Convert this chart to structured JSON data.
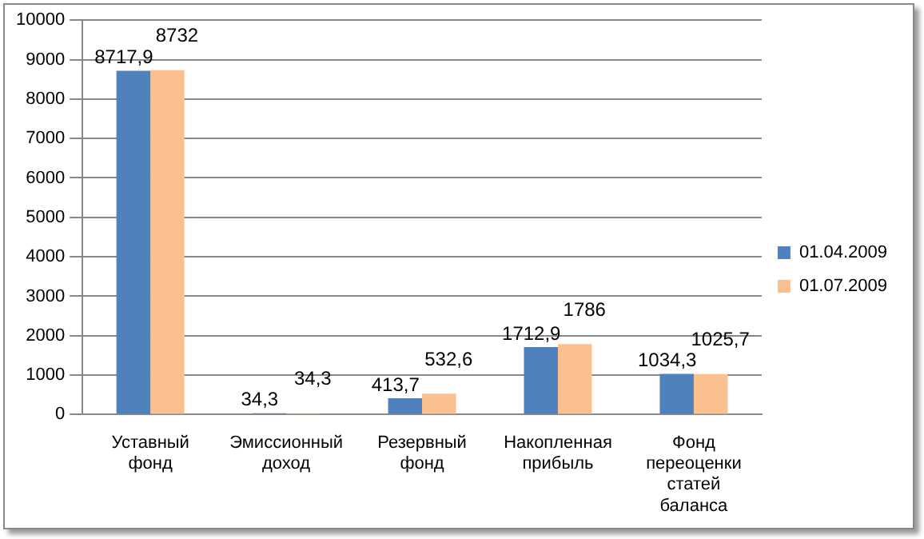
{
  "chart_data": {
    "type": "bar",
    "categories": [
      "Уставный фонд",
      "Эмиссионный доход",
      "Резервный фонд",
      "Накопленная прибыль",
      "Фонд переоценки статей баланса"
    ],
    "series": [
      {
        "name": "01.04.2009",
        "color": "#4f81bd",
        "values": [
          8717.9,
          34.3,
          413.7,
          1712.9,
          1034.3
        ],
        "value_labels": [
          "8717,9",
          "34,3",
          "413,7",
          "1712,9",
          "1034,3"
        ]
      },
      {
        "name": "01.07.2009",
        "color": "#fac090",
        "values": [
          8732,
          34.3,
          532.6,
          1786,
          1025.7
        ],
        "value_labels": [
          "8732",
          "34,3",
          "532,6",
          "1786",
          "1025,7"
        ]
      }
    ],
    "ylim": [
      0,
      10000
    ],
    "yticks": [
      0,
      1000,
      2000,
      3000,
      4000,
      5000,
      6000,
      7000,
      8000,
      9000,
      10000
    ],
    "grid": "y",
    "legend": "right"
  }
}
